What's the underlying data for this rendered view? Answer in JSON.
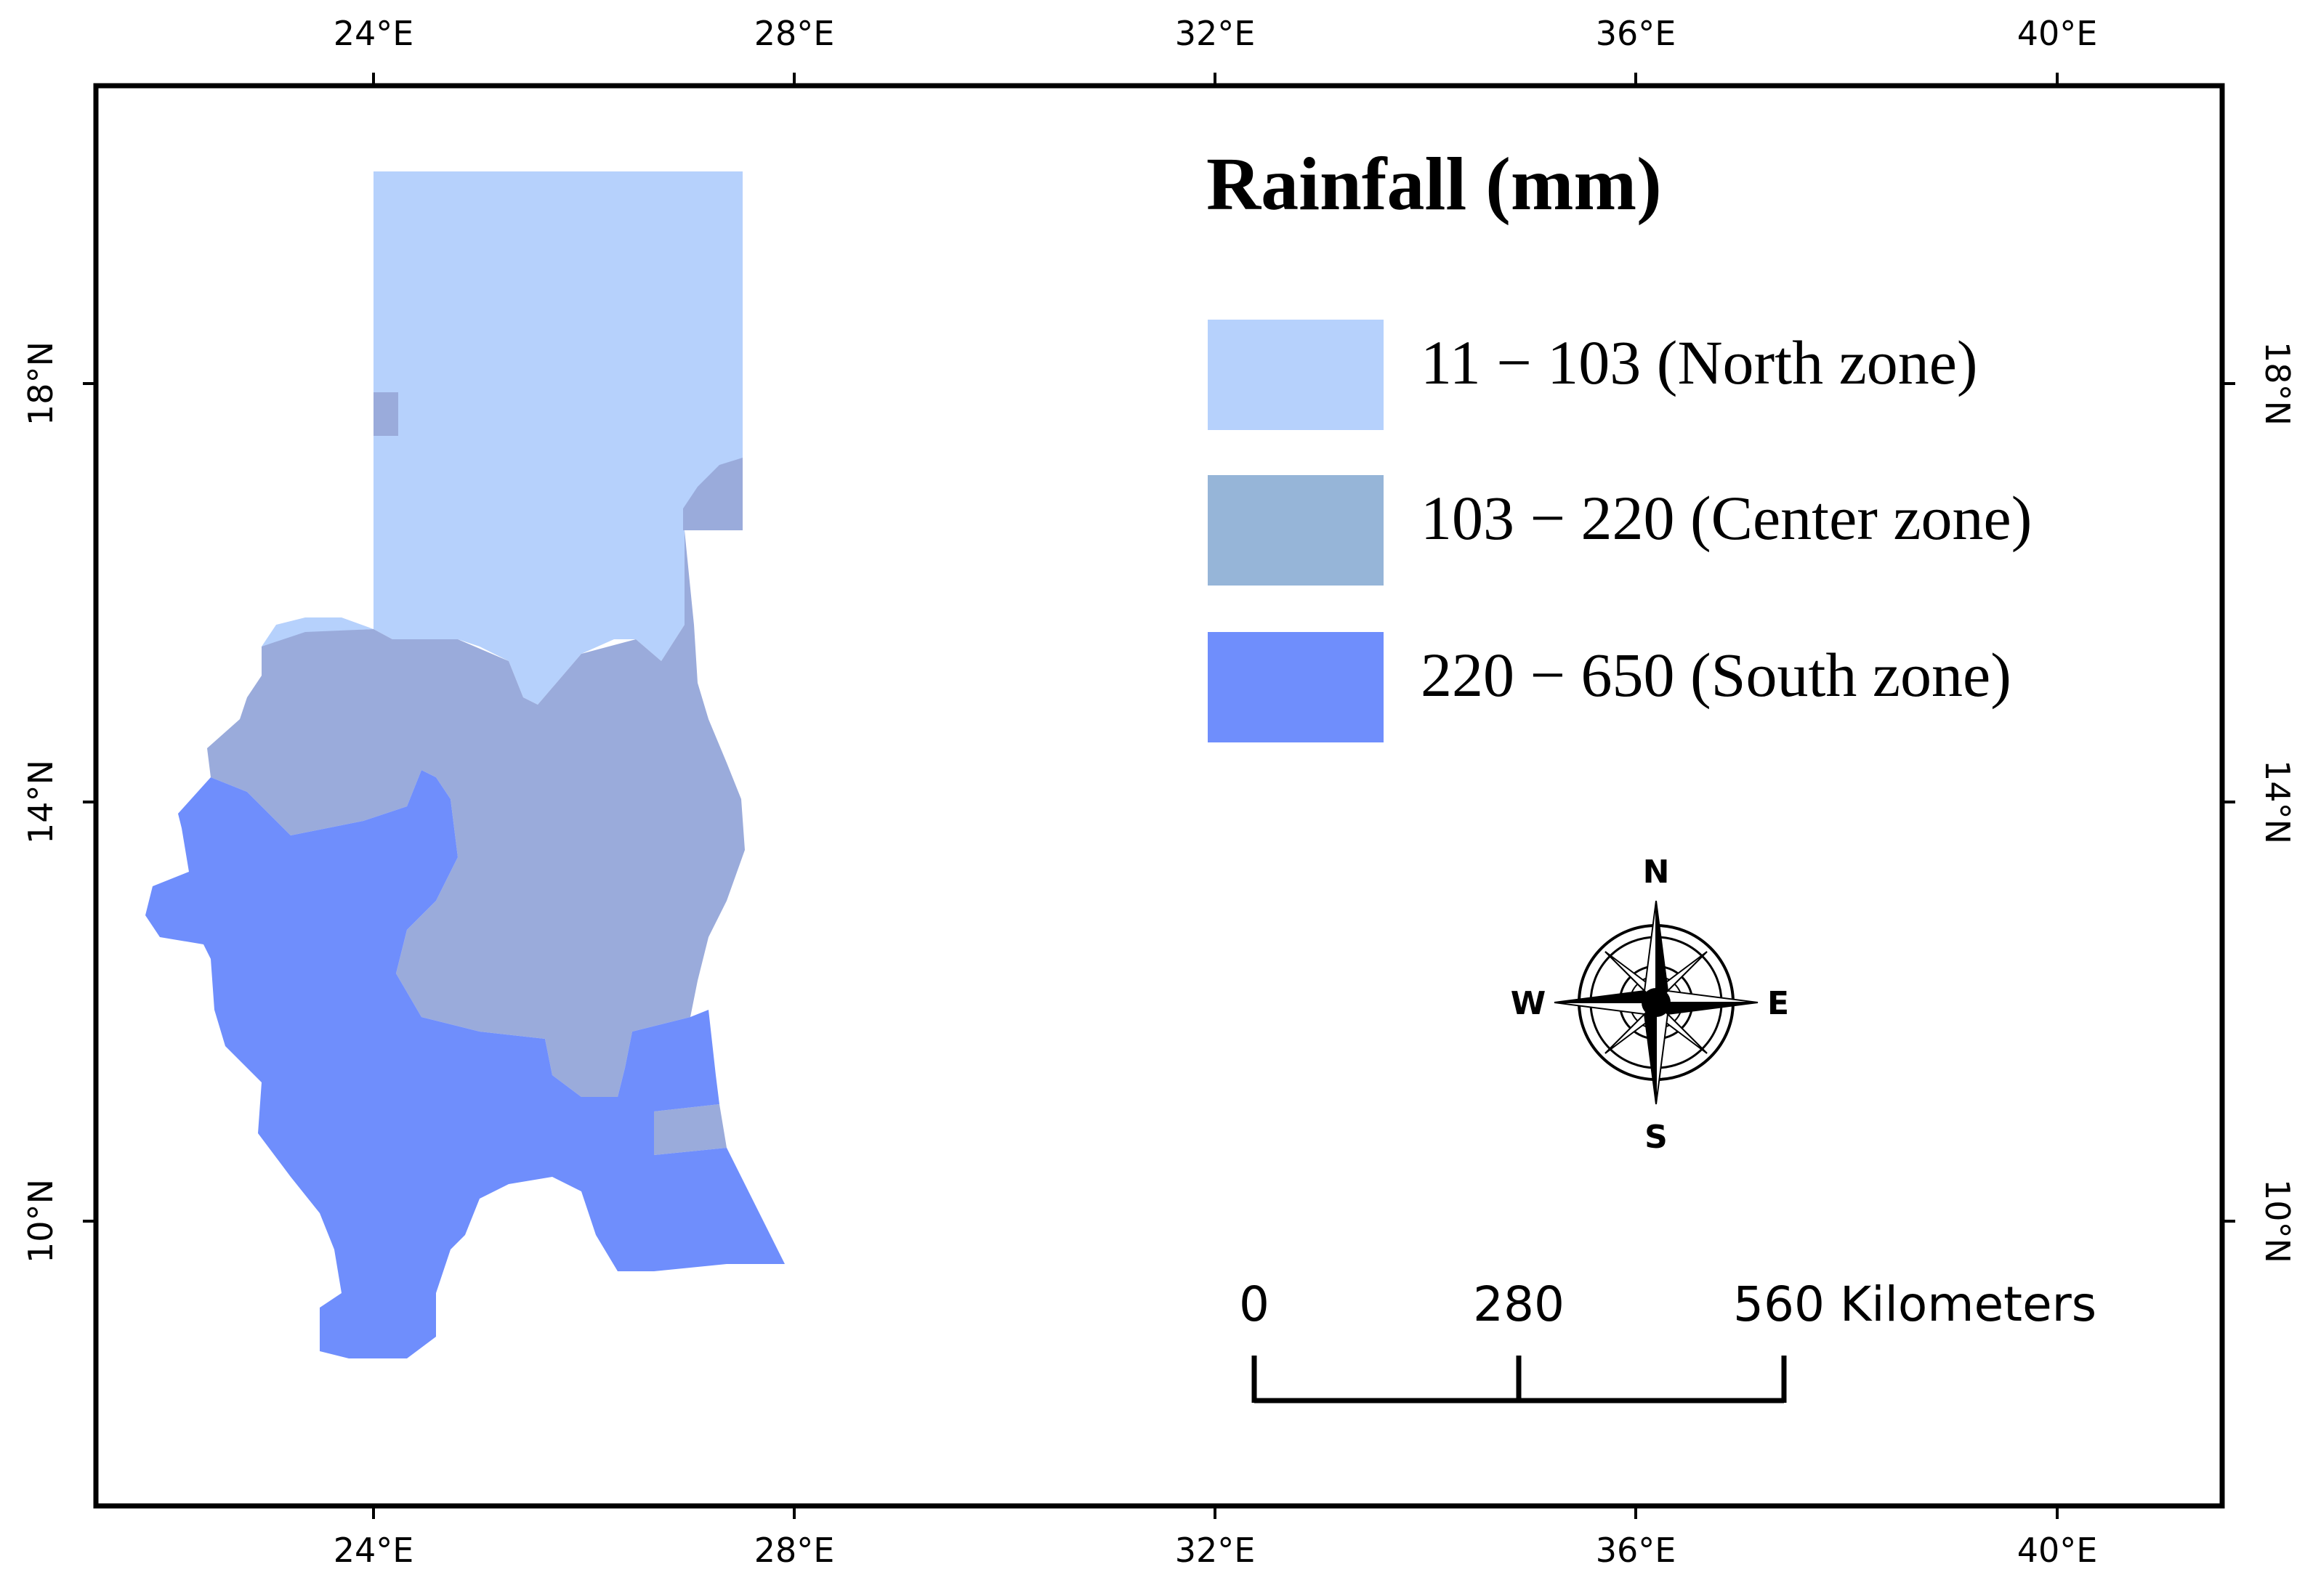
{
  "map": {
    "graticule": {
      "lon_labels": [
        "24°E",
        "28°E",
        "32°E",
        "36°E",
        "40°E"
      ],
      "lat_labels": [
        "18°N",
        "14°N",
        "10°N"
      ]
    },
    "legend": {
      "title": "Rainfall (mm)",
      "items": [
        {
          "label": "11 − 103 (North zone)",
          "color": "#b6d1fc"
        },
        {
          "label": "103 − 220 (Center zone)",
          "color": "#96b5d8"
        },
        {
          "label": "220 − 650 (South zone)",
          "color": "#6f8efc"
        }
      ]
    },
    "zone_colors": {
      "north": "#b6d1fc",
      "center": "#9aabdb",
      "south": "#6f8efc"
    },
    "compass": {
      "n": "N",
      "s": "S",
      "e": "E",
      "w": "W"
    },
    "scale_bar": {
      "labels": [
        "0",
        "280",
        "560 Kilometers"
      ]
    }
  }
}
